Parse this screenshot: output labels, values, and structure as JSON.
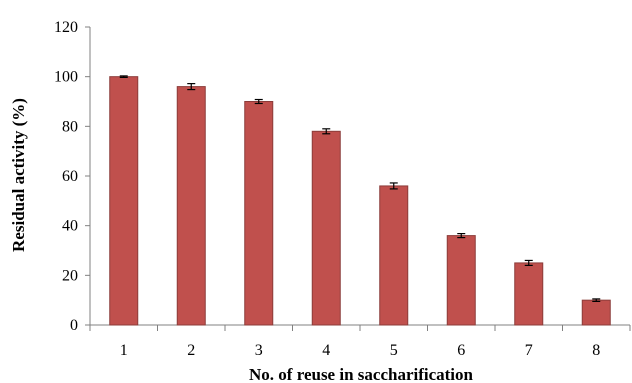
{
  "chart_data": {
    "type": "bar",
    "title": "",
    "xlabel": "No. of reuse in saccharification",
    "ylabel": "Residual activity (%)",
    "categories": [
      "1",
      "2",
      "3",
      "4",
      "5",
      "6",
      "7",
      "8"
    ],
    "series": [
      {
        "values": [
          100,
          96,
          90,
          78,
          56,
          36,
          25,
          10
        ],
        "errors": [
          0.3,
          1.2,
          0.8,
          1.0,
          1.2,
          0.8,
          1.0,
          0.5
        ]
      }
    ],
    "ylim": [
      0,
      120
    ],
    "yticks": [
      0,
      20,
      40,
      60,
      80,
      100,
      120
    ],
    "grid": false,
    "legend": "none",
    "bar_color": "#c0504d",
    "bar_edge_color": "#8c3c3a"
  }
}
